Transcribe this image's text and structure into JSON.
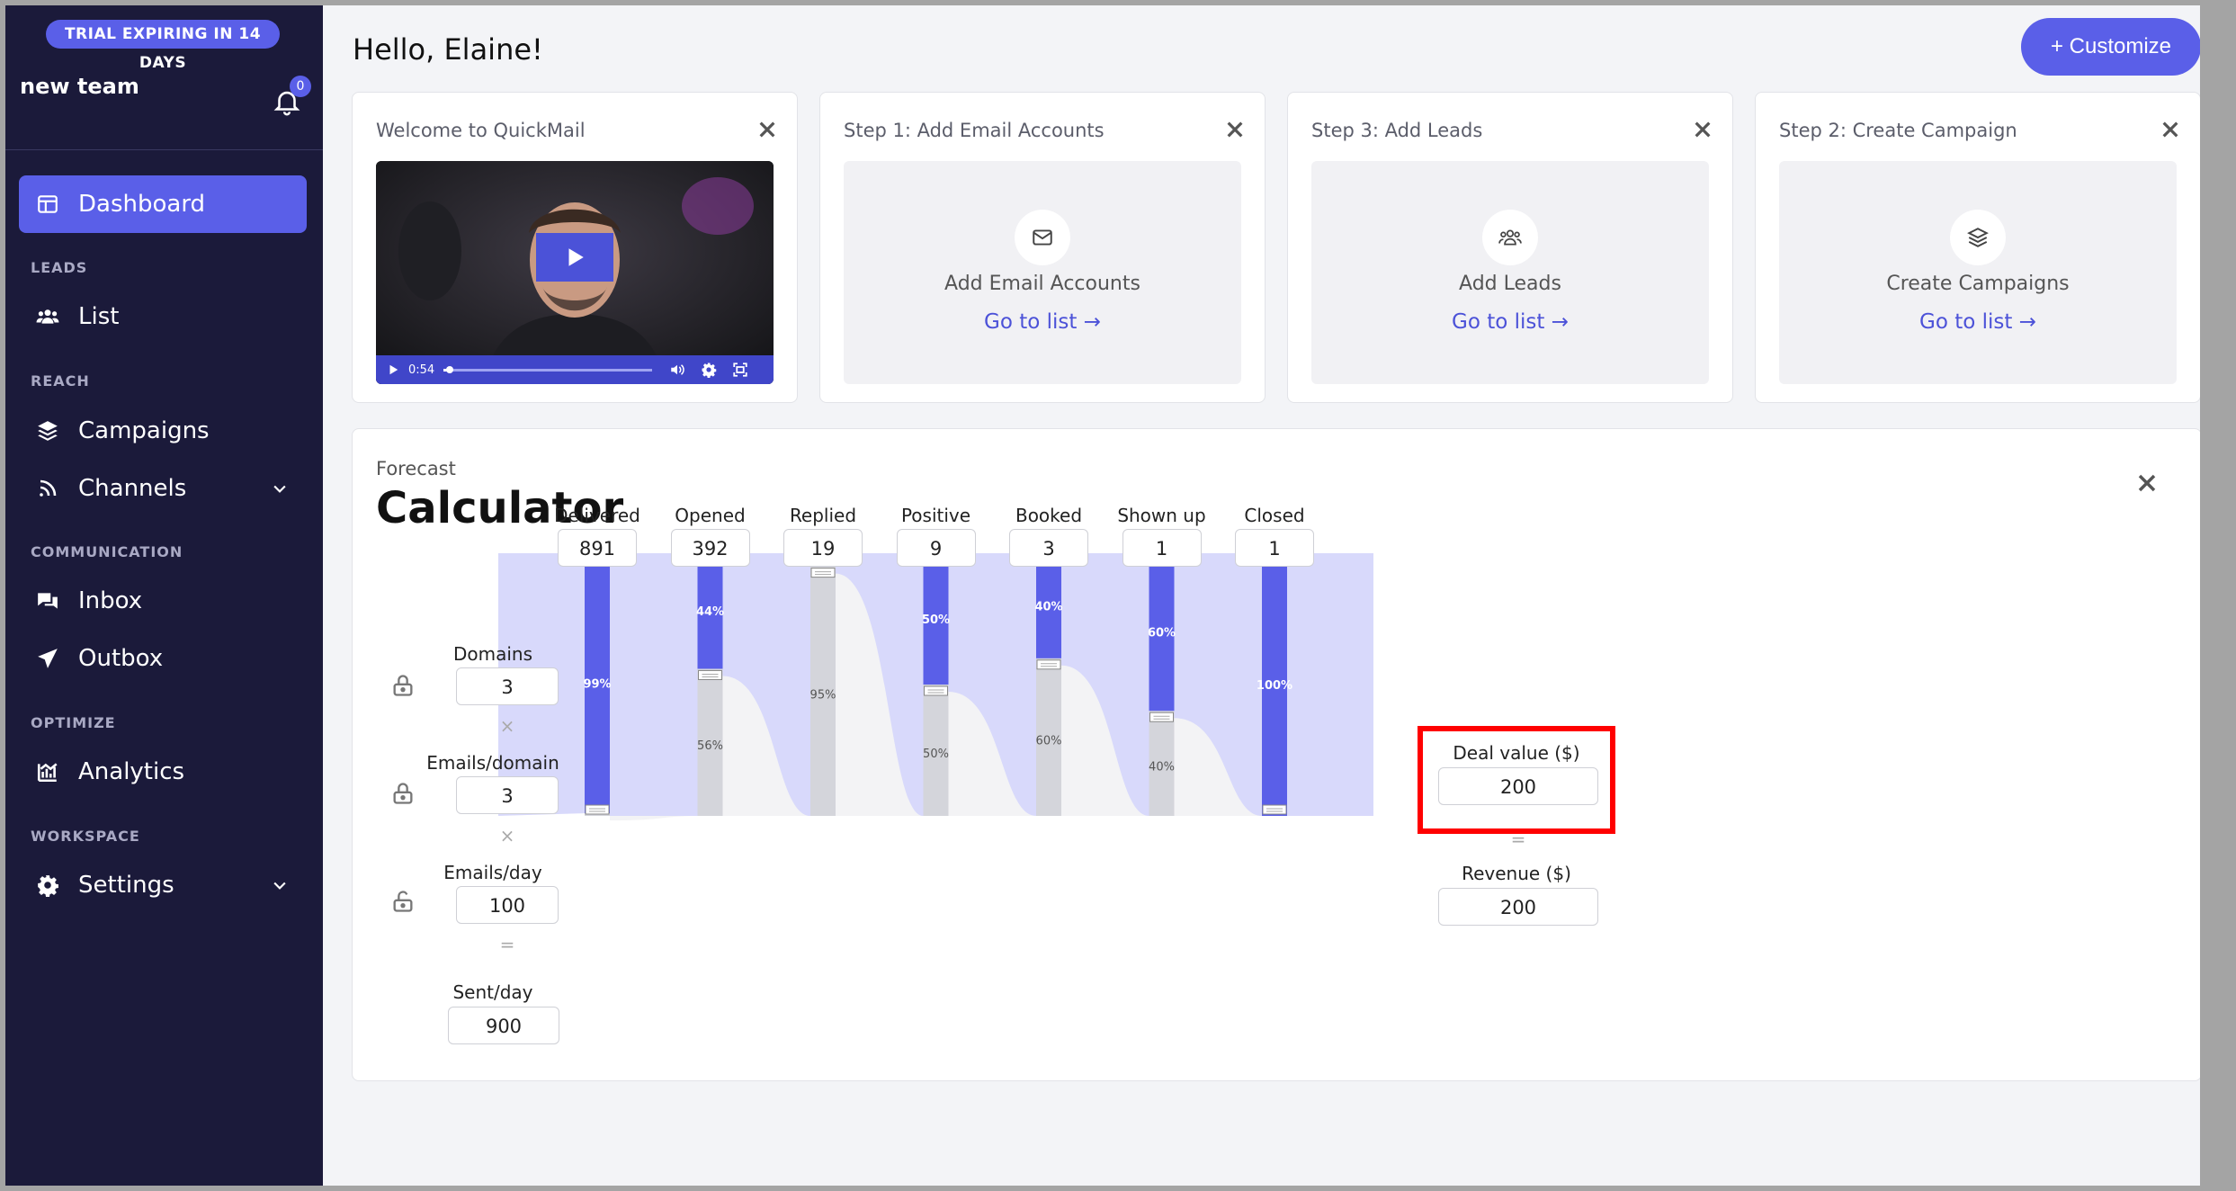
{
  "sidebar": {
    "trial_badge": "TRIAL EXPIRING IN 14 DAYS",
    "team_name": "new team",
    "notification_count": "0",
    "nav": {
      "dashboard": "Dashboard",
      "leads_section": "LEADS",
      "list": "List",
      "reach_section": "REACH",
      "campaigns": "Campaigns",
      "channels": "Channels",
      "communication_section": "COMMUNICATION",
      "inbox": "Inbox",
      "outbox": "Outbox",
      "optimize_section": "OPTIMIZE",
      "analytics": "Analytics",
      "workspace_section": "WORKSPACE",
      "settings": "Settings"
    }
  },
  "header": {
    "greeting": "Hello, Elaine!",
    "customize_label": "+ Customize"
  },
  "cards": [
    {
      "title": "Welcome to QuickMail",
      "video_time": "0:54",
      "video_progress": 0.03
    },
    {
      "title": "Step 1: Add Email Accounts",
      "label": "Add Email Accounts",
      "link": "Go to list →"
    },
    {
      "title": "Step 3: Add Leads",
      "label": "Add Leads",
      "link": "Go to list →"
    },
    {
      "title": "Step 2: Create Campaign",
      "label": "Create Campaigns",
      "link": "Go to list →"
    }
  ],
  "calculator": {
    "subtitle": "Forecast",
    "title": "Calculator",
    "inputs": {
      "domains_label": "Domains",
      "domains": "3",
      "emails_per_domain_label": "Emails/domain",
      "emails_per_domain": "3",
      "emails_per_day_label": "Emails/day",
      "emails_per_day": "100",
      "sent_per_day_label": "Sent/day",
      "sent_per_day": "900",
      "times": "×",
      "equals": "="
    },
    "stages": [
      {
        "name": "Delivered",
        "value": "891",
        "pass": "99%",
        "pass_frac": 0.99,
        "fail": ""
      },
      {
        "name": "Opened",
        "value": "392",
        "pass": "44%",
        "pass_frac": 0.44,
        "fail": "56%"
      },
      {
        "name": "Replied",
        "value": "19",
        "pass": "5%",
        "pass_frac": 0.05,
        "fail": "95%"
      },
      {
        "name": "Positive",
        "value": "9",
        "pass": "50%",
        "pass_frac": 0.5,
        "fail": "50%"
      },
      {
        "name": "Booked",
        "value": "3",
        "pass": "40%",
        "pass_frac": 0.4,
        "fail": "60%"
      },
      {
        "name": "Shown up",
        "value": "1",
        "pass": "60%",
        "pass_frac": 0.6,
        "fail": "40%"
      },
      {
        "name": "Closed",
        "value": "1",
        "pass": "100%",
        "pass_frac": 1.0,
        "fail": ""
      }
    ],
    "deal_value_label": "Deal value ($)",
    "deal_value": "200",
    "revenue_label": "Revenue ($)",
    "revenue": "200"
  },
  "colors": {
    "accent": "#5a5fe8",
    "sidebar_bg": "#1b1a3a",
    "flow_light": "#d8d9fb",
    "fail_bar": "#d4d5db",
    "highlight": "#ff0000"
  }
}
